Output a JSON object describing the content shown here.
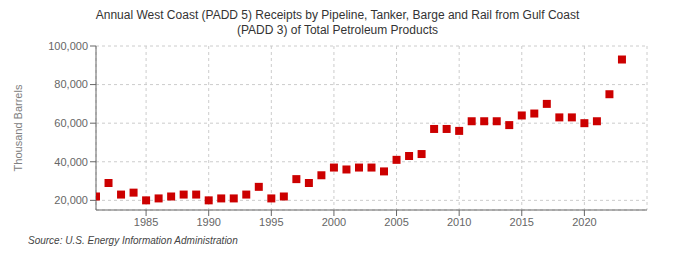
{
  "chart_data": {
    "type": "scatter",
    "title": "Annual West Coast (PADD 5) Receipts by Pipeline, Tanker, Barge and Rail from Gulf Coast\n(PADD 3) of Total Petroleum Products",
    "ylabel": "Thousand Barrels",
    "annotations": [
      "Source: U.S. Energy Information Administration"
    ],
    "color": "#cc0000",
    "marker": "square",
    "grid": true,
    "xlim": [
      1981,
      2025
    ],
    "xticks": [
      1985,
      1990,
      1995,
      2000,
      2005,
      2010,
      2015,
      2020
    ],
    "ylim": [
      15000,
      100000
    ],
    "yticks": [
      {
        "value": 20000,
        "label": "20,000"
      },
      {
        "value": 40000,
        "label": "40,000"
      },
      {
        "value": 60000,
        "label": "60,000"
      },
      {
        "value": 80000,
        "label": "80,000"
      },
      {
        "value": 100000,
        "label": "100,000"
      }
    ],
    "x": [
      1981,
      1982,
      1983,
      1984,
      1985,
      1986,
      1987,
      1988,
      1989,
      1990,
      1991,
      1992,
      1993,
      1994,
      1995,
      1996,
      1997,
      1998,
      1999,
      2000,
      2001,
      2002,
      2003,
      2004,
      2005,
      2006,
      2007,
      2008,
      2009,
      2010,
      2011,
      2012,
      2013,
      2014,
      2015,
      2016,
      2017,
      2018,
      2019,
      2020,
      2021,
      2022,
      2023
    ],
    "values": [
      22000,
      29000,
      23000,
      24000,
      20000,
      21000,
      22000,
      23000,
      23000,
      20000,
      21000,
      21000,
      23000,
      27000,
      21000,
      22000,
      31000,
      29000,
      33000,
      37000,
      36000,
      37000,
      37000,
      35000,
      41000,
      43000,
      44000,
      57000,
      57000,
      56000,
      61000,
      61000,
      61000,
      59000,
      64000,
      65000,
      70000,
      63000,
      63000,
      60000,
      61000,
      75000,
      93000
    ]
  }
}
